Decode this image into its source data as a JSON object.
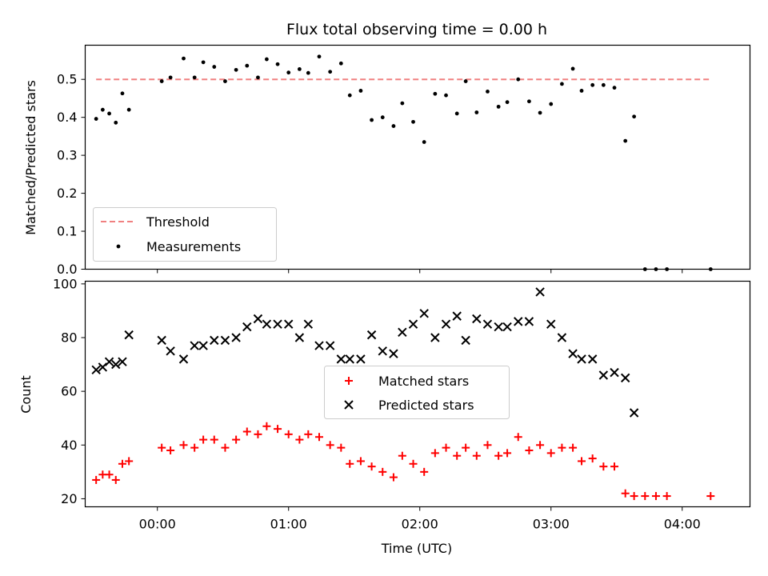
{
  "chart_data": [
    {
      "type": "scatter",
      "title": "Flux total observing time = 0.00 h",
      "xlabel": "",
      "ylabel": "Matched/Predicted stars",
      "xlim": [
        "-00:33",
        "04:31"
      ],
      "ylim": [
        0,
        0.59
      ],
      "yticks": [
        "0.0",
        "0.1",
        "0.2",
        "0.3",
        "0.4",
        "0.5"
      ],
      "grid": false,
      "legend_position": "lower-left",
      "threshold": {
        "name": "Threshold",
        "y": 0.5,
        "x_start": "-00:28",
        "x_end": "04:13",
        "color": "#f08080"
      },
      "series": [
        {
          "name": "Measurements",
          "color": "#000000",
          "points": [
            [
              "-00:28",
              0.396
            ],
            [
              "-00:25",
              0.42
            ],
            [
              "-00:22",
              0.41
            ],
            [
              "-00:19",
              0.386
            ],
            [
              "-00:16",
              0.463
            ],
            [
              "-00:13",
              0.42
            ],
            [
              "00:02",
              0.495
            ],
            [
              "00:06",
              0.505
            ],
            [
              "00:12",
              0.555
            ],
            [
              "00:17",
              0.505
            ],
            [
              "00:21",
              0.545
            ],
            [
              "00:26",
              0.533
            ],
            [
              "00:31",
              0.495
            ],
            [
              "00:36",
              0.525
            ],
            [
              "00:41",
              0.536
            ],
            [
              "00:46",
              0.505
            ],
            [
              "00:50",
              0.553
            ],
            [
              "00:55",
              0.54
            ],
            [
              "01:00",
              0.518
            ],
            [
              "01:05",
              0.527
            ],
            [
              "01:09",
              0.517
            ],
            [
              "01:14",
              0.56
            ],
            [
              "01:19",
              0.52
            ],
            [
              "01:24",
              0.542
            ],
            [
              "01:28",
              0.458
            ],
            [
              "01:33",
              0.47
            ],
            [
              "01:38",
              0.393
            ],
            [
              "01:43",
              0.4
            ],
            [
              "01:48",
              0.377
            ],
            [
              "01:52",
              0.437
            ],
            [
              "01:57",
              0.388
            ],
            [
              "02:02",
              0.335
            ],
            [
              "02:07",
              0.462
            ],
            [
              "02:12",
              0.458
            ],
            [
              "02:17",
              0.41
            ],
            [
              "02:21",
              0.495
            ],
            [
              "02:26",
              0.413
            ],
            [
              "02:31",
              0.468
            ],
            [
              "02:36",
              0.428
            ],
            [
              "02:40",
              0.44
            ],
            [
              "02:45",
              0.5
            ],
            [
              "02:50",
              0.442
            ],
            [
              "02:55",
              0.412
            ],
            [
              "03:00",
              0.435
            ],
            [
              "03:05",
              0.488
            ],
            [
              "03:10",
              0.528
            ],
            [
              "03:14",
              0.47
            ],
            [
              "03:19",
              0.485
            ],
            [
              "03:24",
              0.485
            ],
            [
              "03:29",
              0.478
            ],
            [
              "03:34",
              0.338
            ],
            [
              "03:38",
              0.402
            ],
            [
              "03:43",
              0.0
            ],
            [
              "03:48",
              0.0
            ],
            [
              "03:53",
              0.0
            ],
            [
              "04:13",
              0.0
            ]
          ]
        }
      ]
    },
    {
      "type": "scatter",
      "title": "",
      "xlabel": "Time (UTC)",
      "ylabel": "Count",
      "xlim": [
        "-00:33",
        "04:31"
      ],
      "ylim": [
        17,
        101
      ],
      "yticks": [
        "20",
        "40",
        "60",
        "80",
        "100"
      ],
      "xticks": [
        "00:00",
        "01:00",
        "02:00",
        "03:00",
        "04:00"
      ],
      "grid": false,
      "legend_position": "center",
      "series": [
        {
          "name": "Matched stars",
          "marker": "+",
          "color": "#ff0000",
          "points": [
            [
              "-00:28",
              27
            ],
            [
              "-00:25",
              29
            ],
            [
              "-00:22",
              29
            ],
            [
              "-00:19",
              27
            ],
            [
              "-00:16",
              33
            ],
            [
              "-00:13",
              34
            ],
            [
              "00:02",
              39
            ],
            [
              "00:06",
              38
            ],
            [
              "00:12",
              40
            ],
            [
              "00:17",
              39
            ],
            [
              "00:21",
              42
            ],
            [
              "00:26",
              42
            ],
            [
              "00:31",
              39
            ],
            [
              "00:36",
              42
            ],
            [
              "00:41",
              45
            ],
            [
              "00:46",
              44
            ],
            [
              "00:50",
              47
            ],
            [
              "00:55",
              46
            ],
            [
              "01:00",
              44
            ],
            [
              "01:05",
              42
            ],
            [
              "01:09",
              44
            ],
            [
              "01:14",
              43
            ],
            [
              "01:19",
              40
            ],
            [
              "01:24",
              39
            ],
            [
              "01:28",
              33
            ],
            [
              "01:33",
              34
            ],
            [
              "01:38",
              32
            ],
            [
              "01:43",
              30
            ],
            [
              "01:48",
              28
            ],
            [
              "01:52",
              36
            ],
            [
              "01:57",
              33
            ],
            [
              "02:02",
              30
            ],
            [
              "02:07",
              37
            ],
            [
              "02:12",
              39
            ],
            [
              "02:17",
              36
            ],
            [
              "02:21",
              39
            ],
            [
              "02:26",
              36
            ],
            [
              "02:31",
              40
            ],
            [
              "02:36",
              36
            ],
            [
              "02:40",
              37
            ],
            [
              "02:45",
              43
            ],
            [
              "02:50",
              38
            ],
            [
              "02:55",
              40
            ],
            [
              "03:00",
              37
            ],
            [
              "03:05",
              39
            ],
            [
              "03:10",
              39
            ],
            [
              "03:14",
              34
            ],
            [
              "03:19",
              35
            ],
            [
              "03:24",
              32
            ],
            [
              "03:29",
              32
            ],
            [
              "03:34",
              22
            ],
            [
              "03:38",
              21
            ],
            [
              "03:43",
              21
            ],
            [
              "03:48",
              21
            ],
            [
              "03:53",
              21
            ],
            [
              "04:13",
              21
            ]
          ]
        },
        {
          "name": "Predicted stars",
          "marker": "x",
          "color": "#000000",
          "points": [
            [
              "-00:28",
              68
            ],
            [
              "-00:25",
              69
            ],
            [
              "-00:22",
              71
            ],
            [
              "-00:19",
              70
            ],
            [
              "-00:16",
              71
            ],
            [
              "-00:13",
              81
            ],
            [
              "00:02",
              79
            ],
            [
              "00:06",
              75
            ],
            [
              "00:12",
              72
            ],
            [
              "00:17",
              77
            ],
            [
              "00:21",
              77
            ],
            [
              "00:26",
              79
            ],
            [
              "00:31",
              79
            ],
            [
              "00:36",
              80
            ],
            [
              "00:41",
              84
            ],
            [
              "00:46",
              87
            ],
            [
              "00:50",
              85
            ],
            [
              "00:55",
              85
            ],
            [
              "01:00",
              85
            ],
            [
              "01:05",
              80
            ],
            [
              "01:09",
              85
            ],
            [
              "01:14",
              77
            ],
            [
              "01:19",
              77
            ],
            [
              "01:24",
              72
            ],
            [
              "01:28",
              72
            ],
            [
              "01:33",
              72
            ],
            [
              "01:38",
              81
            ],
            [
              "01:43",
              75
            ],
            [
              "01:48",
              74
            ],
            [
              "01:52",
              82
            ],
            [
              "01:57",
              85
            ],
            [
              "02:02",
              89
            ],
            [
              "02:07",
              80
            ],
            [
              "02:12",
              85
            ],
            [
              "02:17",
              88
            ],
            [
              "02:21",
              79
            ],
            [
              "02:26",
              87
            ],
            [
              "02:31",
              85
            ],
            [
              "02:36",
              84
            ],
            [
              "02:40",
              84
            ],
            [
              "02:45",
              86
            ],
            [
              "02:50",
              86
            ],
            [
              "02:55",
              97
            ],
            [
              "03:00",
              85
            ],
            [
              "03:05",
              80
            ],
            [
              "03:10",
              74
            ],
            [
              "03:14",
              72
            ],
            [
              "03:19",
              72
            ],
            [
              "03:24",
              66
            ],
            [
              "03:29",
              67
            ],
            [
              "03:34",
              65
            ],
            [
              "03:38",
              52
            ]
          ]
        }
      ]
    }
  ]
}
